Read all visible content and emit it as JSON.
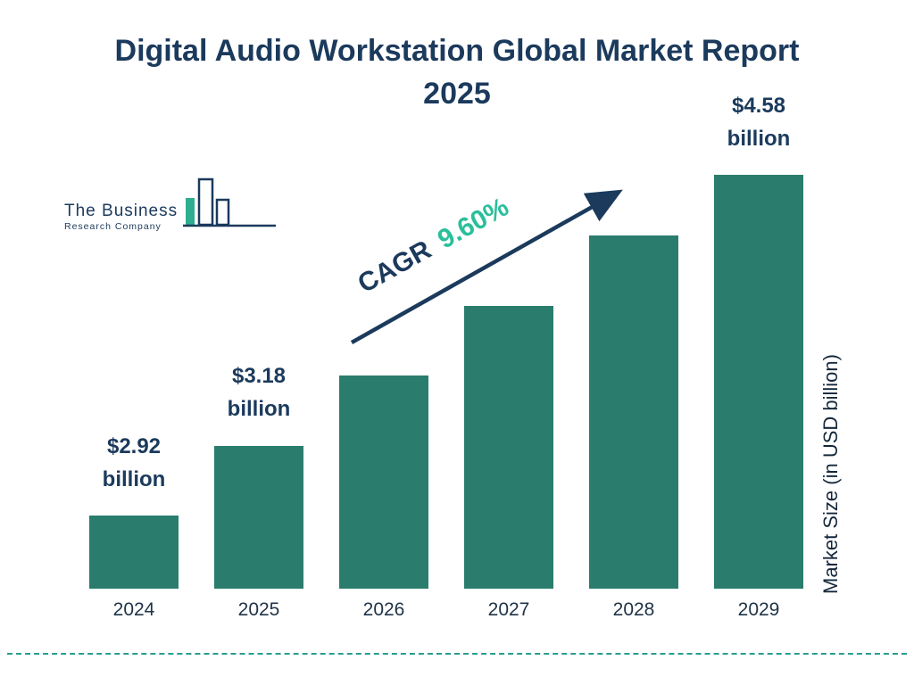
{
  "title": "Digital Audio Workstation Global Market Report 2025",
  "logo": {
    "line1": "The Business",
    "line2": "Research Company"
  },
  "cagr": {
    "label": "CAGR",
    "value": "9.60%"
  },
  "y_axis_label": "Market Size (in USD billion)",
  "colors": {
    "bar": "#2a7d6d",
    "title": "#1b3a5c",
    "cagr_value": "#2abf9b",
    "arrow": "#1b3a5c",
    "dashed_line": "#2a9d8f"
  },
  "chart_data": {
    "type": "bar",
    "title": "Digital Audio Workstation Global Market Report 2025",
    "categories": [
      "2024",
      "2025",
      "2026",
      "2027",
      "2028",
      "2029"
    ],
    "values": [
      2.92,
      3.18,
      3.49,
      3.82,
      4.18,
      4.58
    ],
    "bar_labels": [
      [
        "$2.92",
        "billion"
      ],
      [
        "$3.18",
        "billion"
      ],
      null,
      null,
      null,
      [
        "$4.58",
        "billion"
      ]
    ],
    "xlabel": "",
    "ylabel": "Market Size (in USD billion)",
    "annotations": [
      "CAGR 9.60%"
    ],
    "legend": false,
    "grid": false
  }
}
